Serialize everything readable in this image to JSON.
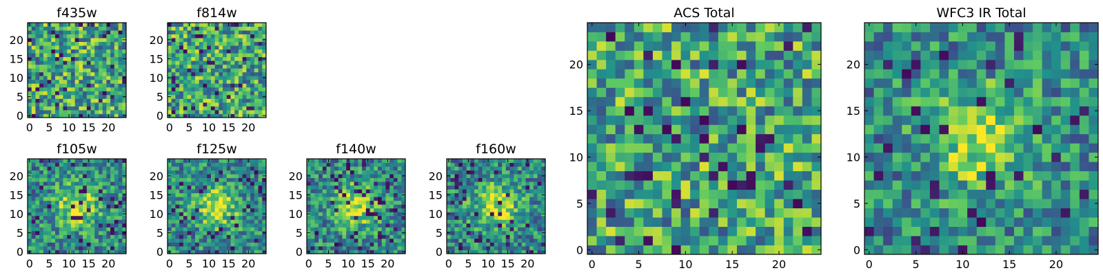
{
  "chart_data": [
    {
      "type": "heatmap",
      "title": "f435w",
      "grid_size": 25,
      "xticks": [
        "0",
        "5",
        "10",
        "15",
        "20"
      ],
      "yticks": [
        "0",
        "5",
        "10",
        "15",
        "20"
      ],
      "pattern": "noise",
      "colormap": "viridis"
    },
    {
      "type": "heatmap",
      "title": "f814w",
      "grid_size": 25,
      "xticks": [
        "0",
        "5",
        "10",
        "15",
        "20"
      ],
      "yticks": [
        "0",
        "5",
        "10",
        "15",
        "20"
      ],
      "pattern": "noise",
      "colormap": "viridis"
    },
    {
      "type": "heatmap",
      "title": "f105w",
      "grid_size": 25,
      "xticks": [
        "0",
        "5",
        "10",
        "15",
        "20"
      ],
      "yticks": [
        "0",
        "5",
        "10",
        "15",
        "20"
      ],
      "pattern": "central source",
      "colormap": "viridis"
    },
    {
      "type": "heatmap",
      "title": "f125w",
      "grid_size": 25,
      "xticks": [
        "0",
        "5",
        "10",
        "15",
        "20"
      ],
      "yticks": [
        "0",
        "5",
        "10",
        "15",
        "20"
      ],
      "pattern": "central source",
      "colormap": "viridis"
    },
    {
      "type": "heatmap",
      "title": "f140w",
      "grid_size": 25,
      "xticks": [
        "0",
        "5",
        "10",
        "15",
        "20"
      ],
      "yticks": [
        "0",
        "5",
        "10",
        "15",
        "20"
      ],
      "pattern": "central source",
      "colormap": "viridis"
    },
    {
      "type": "heatmap",
      "title": "f160w",
      "grid_size": 25,
      "xticks": [
        "0",
        "5",
        "10",
        "15",
        "20"
      ],
      "yticks": [
        "0",
        "5",
        "10",
        "15",
        "20"
      ],
      "pattern": "central source",
      "colormap": "viridis"
    },
    {
      "type": "heatmap",
      "title": "ACS Total",
      "grid_size": 25,
      "xticks": [
        "0",
        "5",
        "10",
        "15",
        "20"
      ],
      "yticks": [
        "0",
        "5",
        "10",
        "15",
        "20"
      ],
      "pattern": "noise",
      "colormap": "viridis"
    },
    {
      "type": "heatmap",
      "title": "WFC3 IR Total",
      "grid_size": 25,
      "xticks": [
        "0",
        "5",
        "10",
        "15",
        "20"
      ],
      "yticks": [
        "0",
        "5",
        "10",
        "15",
        "20"
      ],
      "pattern": "central source",
      "colormap": "viridis"
    }
  ],
  "colors": {
    "colormap_stops": [
      "#440154",
      "#3b528b",
      "#21918c",
      "#5ec962",
      "#fde725"
    ]
  }
}
